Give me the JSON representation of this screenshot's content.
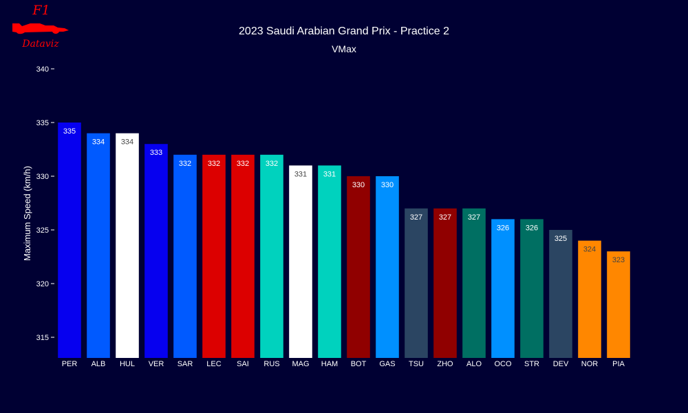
{
  "logo": {
    "top": "F1",
    "bottom": "Dataviz"
  },
  "chart_data": {
    "type": "bar",
    "title": "2023 Saudi Arabian Grand Prix - Practice 2",
    "subtitle": "VMax",
    "xlabel": "",
    "ylabel": "Maximum Speed (km/h)",
    "ylim": [
      313,
      340.5
    ],
    "yticks": [
      315,
      320,
      325,
      330,
      335,
      340
    ],
    "grid": false,
    "categories": [
      "PER",
      "ALB",
      "HUL",
      "VER",
      "SAR",
      "LEC",
      "SAI",
      "RUS",
      "MAG",
      "HAM",
      "BOT",
      "GAS",
      "TSU",
      "ZHO",
      "ALO",
      "OCO",
      "STR",
      "DEV",
      "NOR",
      "PIA"
    ],
    "values": [
      335,
      334,
      334,
      333,
      332,
      332,
      332,
      332,
      331,
      331,
      330,
      330,
      327,
      327,
      327,
      326,
      326,
      325,
      324,
      323
    ],
    "colors": [
      "#0600EF",
      "#005AFF",
      "#FFFFFF",
      "#0600EF",
      "#005AFF",
      "#DC0000",
      "#DC0000",
      "#00D2BE",
      "#FFFFFF",
      "#00D2BE",
      "#900000",
      "#0090FF",
      "#2B4562",
      "#900000",
      "#006F62",
      "#0090FF",
      "#006F62",
      "#2B4562",
      "#FF8700",
      "#FF8700"
    ]
  }
}
